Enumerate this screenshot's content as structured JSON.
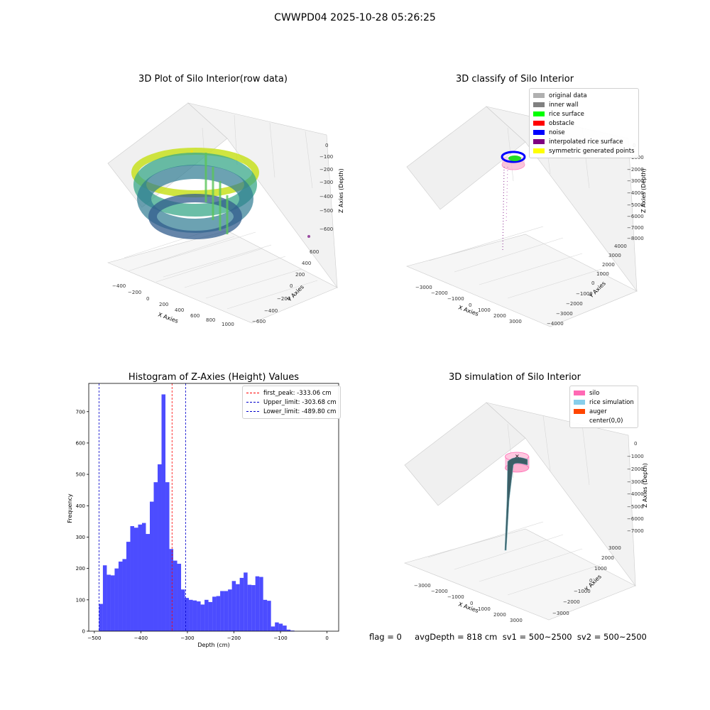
{
  "figure_title": "CWWPD04 2025-10-28 05:26:25",
  "footer_text": "flag = 0     avgDepth = 818 cm  sv1 = 500~2500  sv2 = 500~2500",
  "chart_data": [
    {
      "type": "scatter",
      "title": "3D Plot of Silo Interior(row data)",
      "xlabel": "X Axies",
      "ylabel": "Y Axies",
      "zlabel": "Z Axies (Depth)",
      "x_ticks": [
        "−400",
        "−200",
        "0",
        "200",
        "400",
        "600",
        "800",
        "1000"
      ],
      "y_ticks": [
        "−600",
        "−400",
        "−200",
        "0",
        "200",
        "400",
        "600"
      ],
      "z_ticks": [
        "0",
        "−100",
        "−200",
        "−300",
        "−400",
        "−500",
        "−600"
      ],
      "colormap": "viridis",
      "grid": true
    },
    {
      "type": "scatter",
      "title": "3D classify of Silo Interior",
      "xlabel": "X Axies",
      "ylabel": "Y Axies",
      "zlabel": "Z Axies (Depth)",
      "x_ticks": [
        "−3000",
        "−2000",
        "−1000",
        "0",
        "1000",
        "2000",
        "3000"
      ],
      "y_ticks": [
        "−4000",
        "−3000",
        "−2000",
        "−1000",
        "0",
        "1000",
        "2000",
        "3000",
        "4000"
      ],
      "z_ticks": [
        "0",
        "−1000",
        "−2000",
        "−3000",
        "−4000",
        "−5000",
        "−6000",
        "−7000",
        "−8000"
      ],
      "legend_position": "top-right",
      "legend": [
        {
          "label": "original data",
          "color": "#b0b0b0"
        },
        {
          "label": "inner wall",
          "color": "#808080"
        },
        {
          "label": "rice surface",
          "color": "#00ff00"
        },
        {
          "label": "obstacle",
          "color": "#ff0000"
        },
        {
          "label": "noise",
          "color": "#0000ff"
        },
        {
          "label": "interpolated rice surface",
          "color": "#800080"
        },
        {
          "label": "symmetric generated points",
          "color": "#ffff00"
        }
      ],
      "grid": true
    },
    {
      "type": "bar",
      "title": "Histogram of Z-Axies (Height) Values",
      "xlabel": "Depth (cm)",
      "ylabel": "Frequency",
      "x_ticks": [
        "−500",
        "−400",
        "−300",
        "−200",
        "−100",
        "0"
      ],
      "y_ticks": [
        "0",
        "100",
        "200",
        "300",
        "400",
        "500",
        "600",
        "700"
      ],
      "xlim": [
        -512,
        25
      ],
      "ylim": [
        0,
        790
      ],
      "bin_start": -490,
      "bin_width": 8.4,
      "values": [
        87,
        210,
        180,
        178,
        200,
        222,
        230,
        285,
        335,
        330,
        340,
        345,
        310,
        413,
        475,
        532,
        755,
        475,
        262,
        225,
        215,
        133,
        106,
        100,
        98,
        95,
        85,
        100,
        93,
        110,
        112,
        128,
        128,
        133,
        160,
        150,
        170,
        187,
        148,
        147,
        175,
        173,
        100,
        97,
        15,
        28,
        24,
        18,
        5,
        2
      ],
      "bar_color": "#0000ff",
      "vlines": [
        {
          "label": "first_peak: -333.06 cm",
          "x": -333.06,
          "color": "#ff0000"
        },
        {
          "label": "Upper_limit: -303.68 cm",
          "x": -303.68,
          "color": "#0000cc"
        },
        {
          "label": "Lower_limit: -489.80 cm",
          "x": -489.8,
          "color": "#0000cc"
        }
      ],
      "legend_position": "top-right"
    },
    {
      "type": "scatter",
      "title": "3D simulation of Silo Interior",
      "xlabel": "X Axies",
      "ylabel": "Y Axies",
      "zlabel": "Z Axies (Depth)",
      "x_ticks": [
        "−3000",
        "−2000",
        "−1000",
        "0",
        "1000",
        "2000",
        "3000"
      ],
      "y_ticks": [
        "−3000",
        "−2000",
        "−1000",
        "0",
        "1000",
        "2000",
        "3000"
      ],
      "z_ticks": [
        "0",
        "−1000",
        "−2000",
        "−3000",
        "−4000",
        "−5000",
        "−6000",
        "−7000"
      ],
      "legend_position": "top-right",
      "legend": [
        {
          "label": "silo",
          "color": "#ff69b4"
        },
        {
          "label": "rice simulation",
          "color": "#87ceeb"
        },
        {
          "label": "auger",
          "color": "#ff4500"
        },
        {
          "label": "center(0,0)",
          "color": "#ffffff"
        }
      ],
      "grid": true
    }
  ]
}
